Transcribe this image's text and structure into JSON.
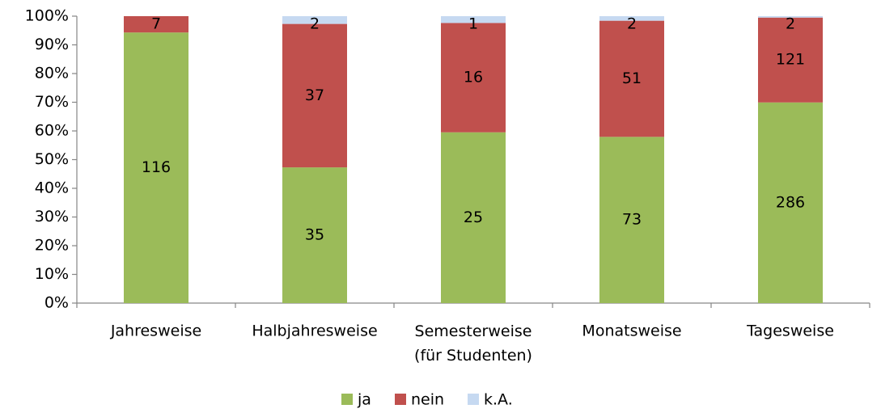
{
  "chart_data": {
    "type": "bar",
    "stacking": "percent",
    "categories": [
      "Jahresweise",
      "Halbjahresweise",
      "Semesterweise\n(für Studenten)",
      "Monatsweise",
      "Tagesweise"
    ],
    "series": [
      {
        "name": "ja",
        "color": "#9bbb59",
        "values": [
          116,
          35,
          25,
          73,
          286
        ]
      },
      {
        "name": "nein",
        "color": "#c0504d",
        "values": [
          7,
          37,
          16,
          51,
          121
        ]
      },
      {
        "name": "k.A.",
        "color": "#c6d9f1",
        "values": [
          0,
          2,
          1,
          2,
          2
        ]
      }
    ],
    "ylim": [
      0,
      100
    ],
    "yticks": [
      {
        "value": 0,
        "label": "0%"
      },
      {
        "value": 10,
        "label": "10%"
      },
      {
        "value": 20,
        "label": "20%"
      },
      {
        "value": 30,
        "label": "30%"
      },
      {
        "value": 40,
        "label": "40%"
      },
      {
        "value": 50,
        "label": "50%"
      },
      {
        "value": 60,
        "label": "60%"
      },
      {
        "value": 70,
        "label": "70%"
      },
      {
        "value": 80,
        "label": "80%"
      },
      {
        "value": 90,
        "label": "90%"
      },
      {
        "value": 100,
        "label": "100%"
      }
    ],
    "grid": false,
    "legend": "bottom"
  }
}
